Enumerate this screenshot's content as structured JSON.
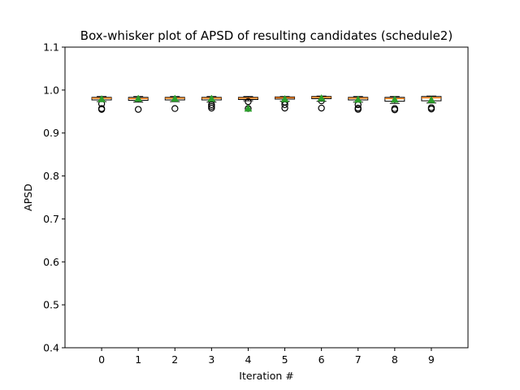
{
  "chart_data": {
    "type": "box",
    "title": "Box-whisker plot of APSD of resulting candidates (schedule2)",
    "xlabel": "Iteration #",
    "ylabel": "APSD",
    "ylim": [
      0.4,
      1.1
    ],
    "yticks": [
      0.4,
      0.5,
      0.6,
      0.7,
      0.8,
      0.9,
      1.0,
      1.1
    ],
    "ytick_labels": [
      "0.4",
      "0.5",
      "0.6",
      "0.7",
      "0.8",
      "0.9",
      "1.0",
      "1.1"
    ],
    "categories": [
      "0",
      "1",
      "2",
      "3",
      "4",
      "5",
      "6",
      "7",
      "8",
      "9"
    ],
    "boxes": [
      {
        "whisker_low": 0.973,
        "q1": 0.977,
        "median": 0.981,
        "q3": 0.983,
        "whisker_high": 0.985,
        "mean": 0.979,
        "outliers": [
          0.955,
          0.957,
          0.968
        ]
      },
      {
        "whisker_low": 0.972,
        "q1": 0.976,
        "median": 0.98,
        "q3": 0.983,
        "whisker_high": 0.985,
        "mean": 0.98,
        "outliers": [
          0.955
        ]
      },
      {
        "whisker_low": 0.973,
        "q1": 0.977,
        "median": 0.981,
        "q3": 0.983,
        "whisker_high": 0.985,
        "mean": 0.98,
        "outliers": [
          0.957
        ]
      },
      {
        "whisker_low": 0.972,
        "q1": 0.977,
        "median": 0.981,
        "q3": 0.983,
        "whisker_high": 0.985,
        "mean": 0.98,
        "outliers": [
          0.958,
          0.962,
          0.966
        ]
      },
      {
        "whisker_low": 0.975,
        "q1": 0.978,
        "median": 0.981,
        "q3": 0.983,
        "whisker_high": 0.985,
        "mean": 0.957,
        "outliers": [
          0.957,
          0.973
        ]
      },
      {
        "whisker_low": 0.974,
        "q1": 0.979,
        "median": 0.982,
        "q3": 0.984,
        "whisker_high": 0.985,
        "mean": 0.979,
        "outliers": [
          0.958,
          0.966,
          0.972
        ]
      },
      {
        "whisker_low": 0.974,
        "q1": 0.98,
        "median": 0.983,
        "q3": 0.985,
        "whisker_high": 0.986,
        "mean": 0.981,
        "outliers": [
          0.958,
          0.975
        ]
      },
      {
        "whisker_low": 0.972,
        "q1": 0.977,
        "median": 0.981,
        "q3": 0.983,
        "whisker_high": 0.985,
        "mean": 0.978,
        "outliers": [
          0.955,
          0.958,
          0.966
        ]
      },
      {
        "whisker_low": 0.969,
        "q1": 0.974,
        "median": 0.98,
        "q3": 0.983,
        "whisker_high": 0.985,
        "mean": 0.978,
        "outliers": [
          0.954,
          0.957
        ]
      },
      {
        "whisker_low": 0.97,
        "q1": 0.975,
        "median": 0.982,
        "q3": 0.985,
        "whisker_high": 0.986,
        "mean": 0.977,
        "outliers": [
          0.956,
          0.959
        ]
      }
    ],
    "grid": false,
    "colors": {
      "box_edge": "#000000",
      "median": "#ff7f0e",
      "mean_marker": "#2ca02c",
      "outlier_edge": "#000000"
    }
  }
}
